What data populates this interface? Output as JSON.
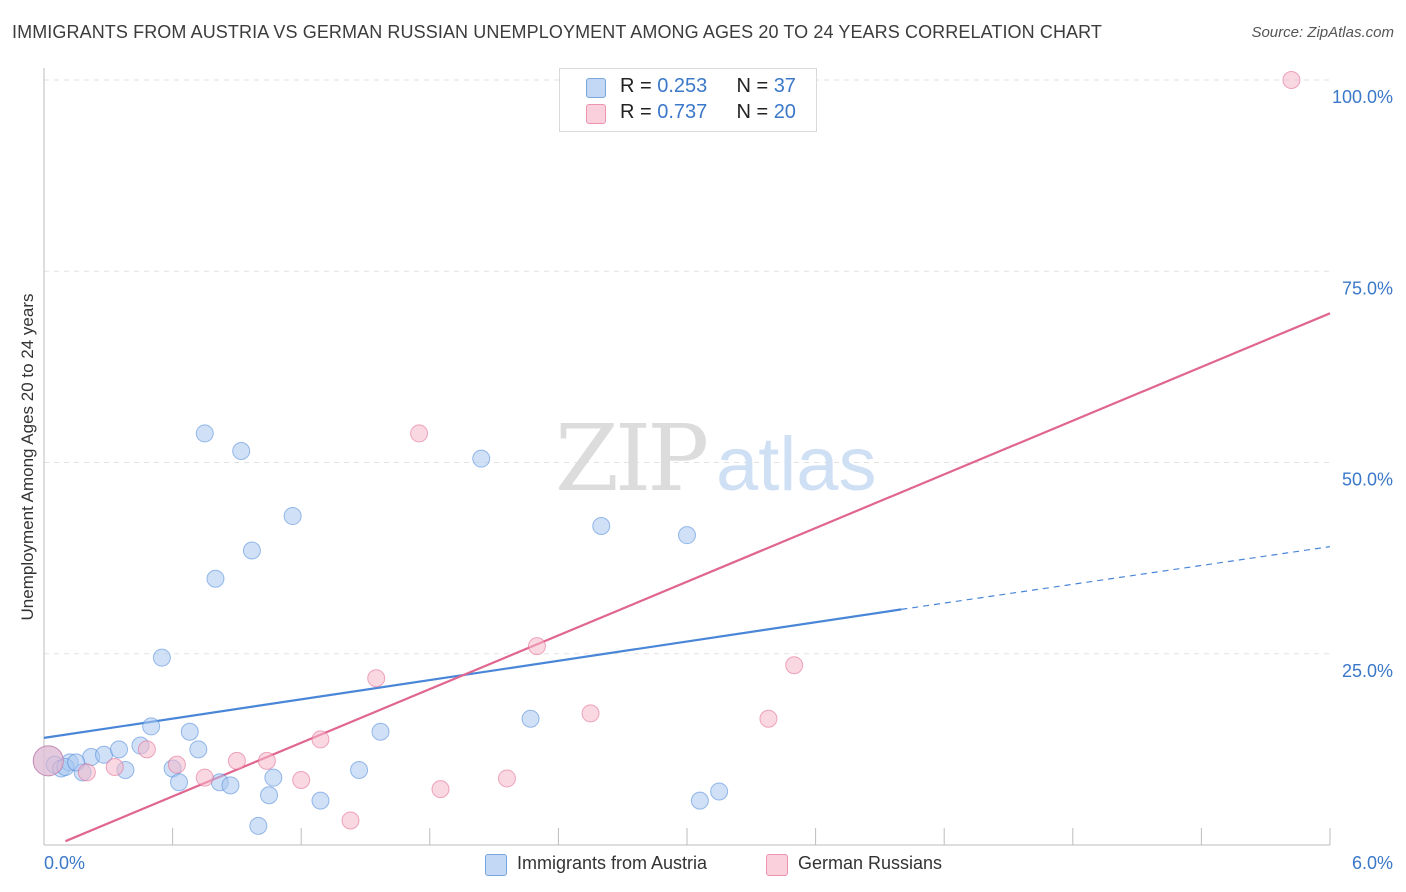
{
  "title": "IMMIGRANTS FROM AUSTRIA VS GERMAN RUSSIAN UNEMPLOYMENT AMONG AGES 20 TO 24 YEARS CORRELATION CHART",
  "source": "Source: ZipAtlas.com",
  "watermark": {
    "zip": "ZIP",
    "atlas": "atlas"
  },
  "legend_top": [
    {
      "r_label": "R = ",
      "r_value": "0.253",
      "n_label": "N = ",
      "n_value": "37",
      "color": "#a9c8f0"
    },
    {
      "r_label": "R = ",
      "r_value": "0.737",
      "n_label": "N = ",
      "n_value": "20",
      "color": "#f6b8cb"
    }
  ],
  "legend_bottom": [
    {
      "label": "Immigrants from Austria",
      "color": "#a9c8f0"
    },
    {
      "label": "German Russians",
      "color": "#f6b8cb"
    }
  ],
  "chart_data": {
    "type": "scatter",
    "title": "IMMIGRANTS FROM AUSTRIA VS GERMAN RUSSIAN UNEMPLOYMENT AMONG AGES 20 TO 24 YEARS CORRELATION CHART",
    "xlabel": "",
    "ylabel": "Unemployment Among Ages 20 to 24 years",
    "xlim": [
      0,
      6
    ],
    "ylim": [
      0,
      100
    ],
    "x_tick_labels": [
      "0.0%",
      "6.0%"
    ],
    "y_tick_labels": [
      "25.0%",
      "50.0%",
      "75.0%",
      "100.0%"
    ],
    "y_ticks": [
      25,
      50,
      75,
      100
    ],
    "series": [
      {
        "name": "Immigrants from Austria",
        "color": "#4a86d8",
        "fill": "#a9c8f0",
        "r": 0.253,
        "n": 37,
        "trend": {
          "x0": 0,
          "y0": 14.0,
          "x1": 4.0,
          "y1": 30.8,
          "dash_to_x": 6.0,
          "dash_to_y": 39.0
        },
        "points": [
          [
            0.02,
            11.0
          ],
          [
            0.05,
            10.5
          ],
          [
            0.08,
            10.0
          ],
          [
            0.12,
            10.8
          ],
          [
            0.18,
            9.5
          ],
          [
            0.22,
            11.5
          ],
          [
            0.28,
            11.8
          ],
          [
            0.35,
            12.5
          ],
          [
            0.38,
            9.8
          ],
          [
            0.45,
            13.0
          ],
          [
            0.5,
            15.5
          ],
          [
            0.55,
            24.5
          ],
          [
            0.6,
            10.0
          ],
          [
            0.63,
            8.2
          ],
          [
            0.68,
            14.8
          ],
          [
            0.72,
            12.5
          ],
          [
            0.75,
            53.8
          ],
          [
            0.8,
            34.8
          ],
          [
            0.82,
            8.2
          ],
          [
            0.87,
            7.8
          ],
          [
            0.92,
            51.5
          ],
          [
            0.97,
            38.5
          ],
          [
            1.0,
            2.5
          ],
          [
            1.05,
            6.5
          ],
          [
            1.07,
            8.8
          ],
          [
            1.16,
            43.0
          ],
          [
            1.29,
            5.8
          ],
          [
            1.47,
            9.8
          ],
          [
            1.57,
            14.8
          ],
          [
            2.04,
            50.5
          ],
          [
            2.27,
            16.5
          ],
          [
            2.6,
            41.7
          ],
          [
            3.0,
            40.5
          ],
          [
            3.06,
            5.8
          ],
          [
            3.15,
            7.0
          ],
          [
            0.1,
            10.2
          ],
          [
            0.15,
            10.8
          ]
        ]
      },
      {
        "name": "German Russians",
        "color": "#e0668f",
        "fill": "#f6b8cb",
        "r": 0.737,
        "n": 20,
        "trend": {
          "x0": 0.1,
          "y0": 0.5,
          "x1": 6.0,
          "y1": 69.5
        },
        "points": [
          [
            0.02,
            11.0
          ],
          [
            0.2,
            9.5
          ],
          [
            0.33,
            10.2
          ],
          [
            0.48,
            12.5
          ],
          [
            0.62,
            10.5
          ],
          [
            0.75,
            8.8
          ],
          [
            0.9,
            11.0
          ],
          [
            1.04,
            11.0
          ],
          [
            1.2,
            8.5
          ],
          [
            1.29,
            13.8
          ],
          [
            1.43,
            3.2
          ],
          [
            1.55,
            21.8
          ],
          [
            1.75,
            53.8
          ],
          [
            1.85,
            7.3
          ],
          [
            2.16,
            8.7
          ],
          [
            2.3,
            26.0
          ],
          [
            2.55,
            17.2
          ],
          [
            3.38,
            16.5
          ],
          [
            3.5,
            23.5
          ],
          [
            5.82,
            100.0
          ]
        ]
      }
    ]
  }
}
